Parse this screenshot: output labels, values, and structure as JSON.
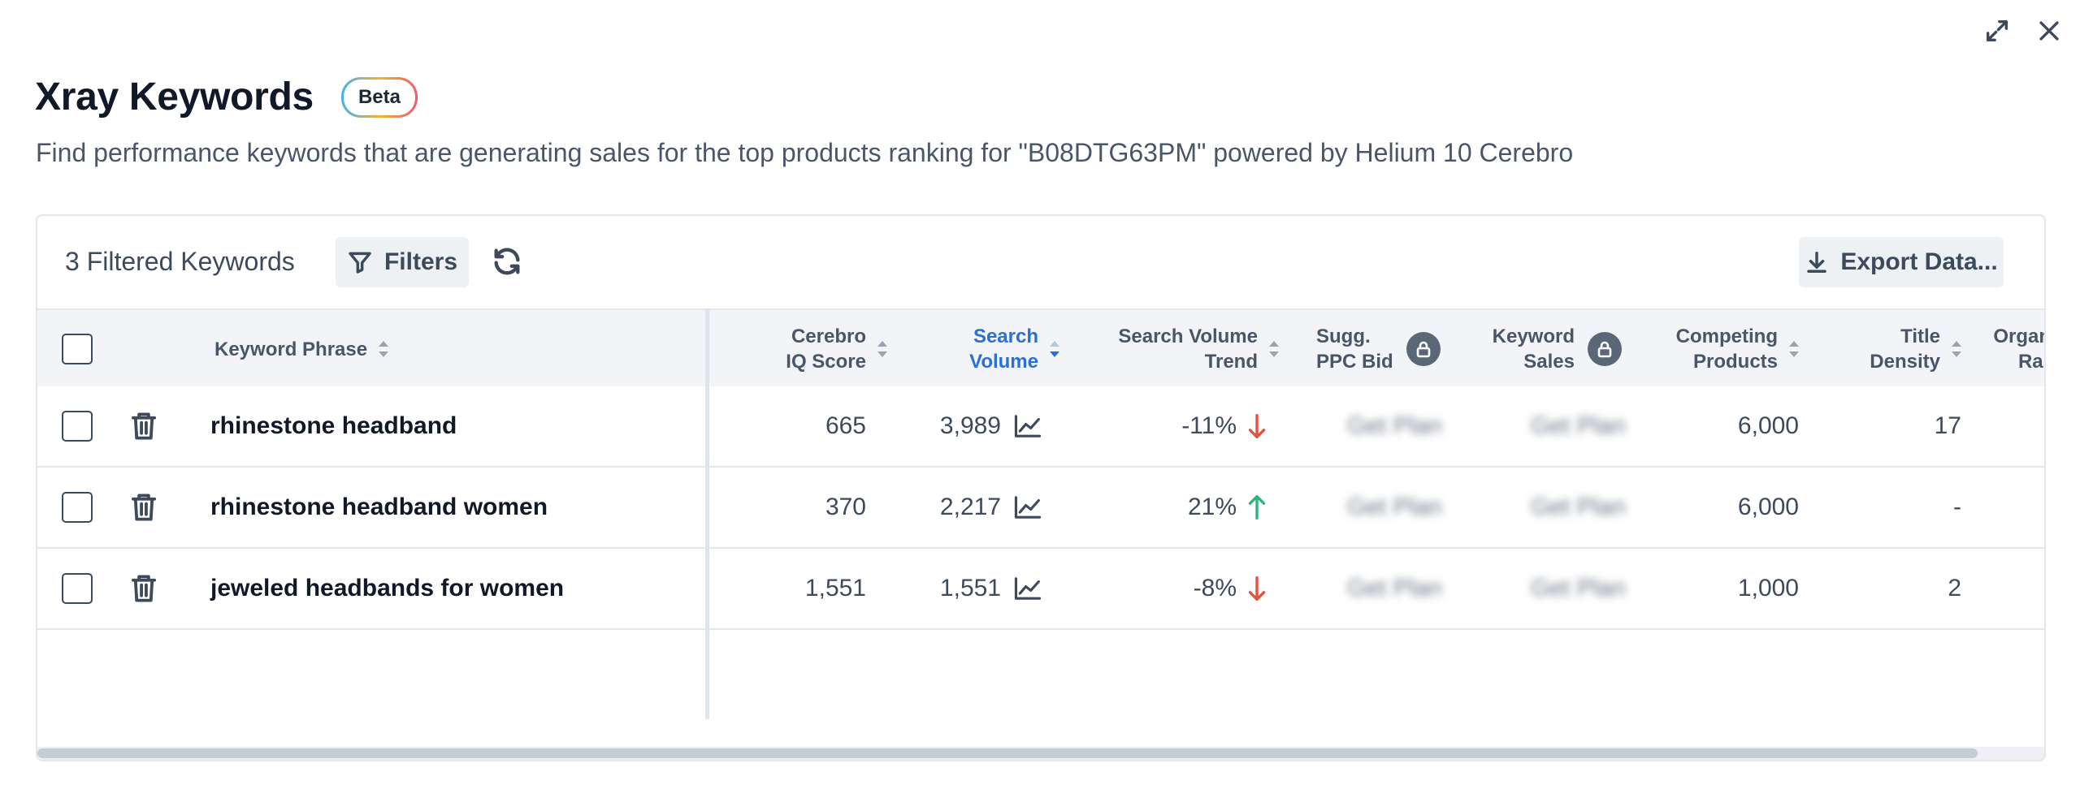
{
  "header": {
    "title": "Xray Keywords",
    "badge": "Beta",
    "subtitle": "Find performance keywords that are generating sales for the top products ranking for \"B08DTG63PM\" powered by Helium 10 Cerebro"
  },
  "toolbar": {
    "count_label": "3 Filtered Keywords",
    "filters_label": "Filters",
    "export_label": "Export Data..."
  },
  "columns": {
    "keyword_phrase": "Keyword Phrase",
    "cerebro_iq_line1": "Cerebro",
    "cerebro_iq_line2": "IQ Score",
    "search_volume_line1": "Search",
    "search_volume_line2": "Volume",
    "sv_trend_line1": "Search Volume",
    "sv_trend_line2": "Trend",
    "ppc_bid_line1": "Sugg.",
    "ppc_bid_line2": "PPC Bid",
    "keyword_sales_line1": "Keyword",
    "keyword_sales_line2": "Sales",
    "competing_line1": "Competing",
    "competing_line2": "Products",
    "title_density_line1": "Title",
    "title_density_line2": "Density",
    "organic_rank_line1": "Organ",
    "organic_rank_line2": "Rar"
  },
  "rows": [
    {
      "keyword": "rhinestone headband",
      "cerebro_iq": "665",
      "search_volume": "3,989",
      "trend": "-11%",
      "trend_dir": "down",
      "ppc_bid": "Get Plan",
      "keyword_sales": "Get Plan",
      "competing": "6,000",
      "title_density": "17"
    },
    {
      "keyword": "rhinestone headband women",
      "cerebro_iq": "370",
      "search_volume": "2,217",
      "trend": "21%",
      "trend_dir": "up",
      "ppc_bid": "Get Plan",
      "keyword_sales": "Get Plan",
      "competing": "6,000",
      "title_density": "-"
    },
    {
      "keyword": "jeweled headbands for women",
      "cerebro_iq": "1,551",
      "search_volume": "1,551",
      "trend": "-8%",
      "trend_dir": "down",
      "ppc_bid": "Get Plan",
      "keyword_sales": "Get Plan",
      "competing": "1,000",
      "title_density": "2"
    }
  ],
  "colors": {
    "active_sort": "#2a6fd6",
    "trend_down": "#e0533d",
    "trend_up": "#2fb380"
  }
}
